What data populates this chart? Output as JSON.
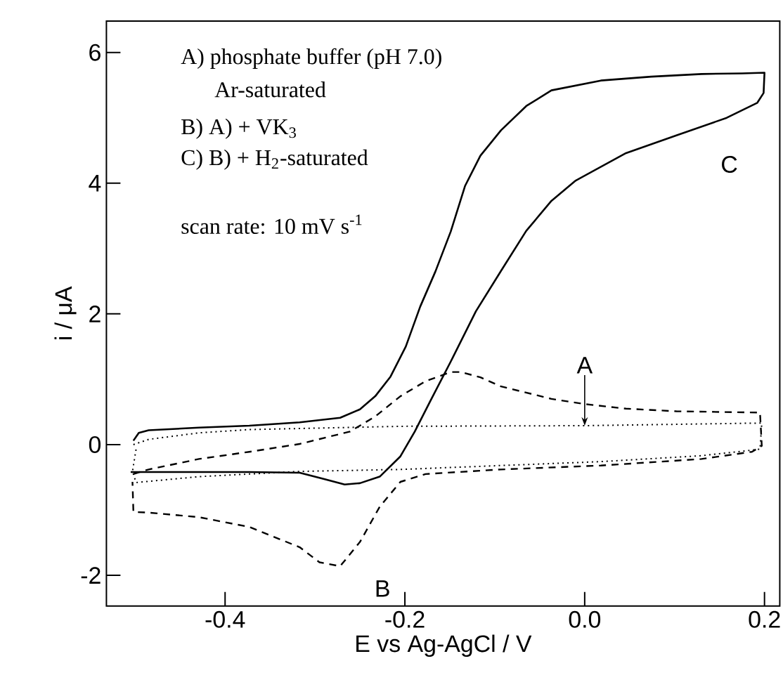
{
  "chart_data": {
    "type": "line",
    "xlabel": "E vs Ag-AgCl  /  V",
    "ylabel": "i  /  μA",
    "xlim": [
      -0.532,
      0.217
    ],
    "ylim": [
      -2.47,
      6.48
    ],
    "xticks": [
      -0.4,
      -0.2,
      {
        "value": 0,
        "label": "0.0"
      },
      0.2
    ],
    "yticks": [
      -2,
      0,
      2,
      4,
      6
    ],
    "series": [
      {
        "color": "#000000",
        "line_style": "solid",
        "x": [
          -0.502,
          -0.496,
          -0.485,
          -0.429,
          -0.373,
          -0.317,
          -0.272,
          -0.25,
          -0.233,
          -0.216,
          -0.199,
          -0.183,
          -0.166,
          -0.149,
          -0.133,
          -0.116,
          -0.093,
          -0.065,
          -0.037,
          0.018,
          0.074,
          0.13,
          0.175,
          0.2,
          0.199,
          0.192,
          0.158,
          0.102,
          0.046,
          -0.01,
          -0.037,
          -0.065,
          -0.093,
          -0.121,
          -0.149,
          -0.172,
          -0.189,
          -0.205,
          -0.228,
          -0.25,
          -0.267,
          -0.289,
          -0.317,
          -0.373,
          -0.505
        ],
        "values": [
          0.06,
          0.18,
          0.22,
          0.26,
          0.29,
          0.34,
          0.41,
          0.54,
          0.74,
          1.04,
          1.5,
          2.11,
          2.65,
          3.26,
          3.96,
          4.42,
          4.81,
          5.18,
          5.42,
          5.57,
          5.63,
          5.67,
          5.68,
          5.69,
          5.38,
          5.23,
          5.0,
          4.73,
          4.46,
          4.04,
          3.73,
          3.27,
          2.66,
          2.04,
          1.27,
          0.66,
          0.2,
          -0.18,
          -0.49,
          -0.59,
          -0.61,
          -0.53,
          -0.43,
          -0.42,
          -0.42
        ]
      },
      {
        "color": "#000000",
        "line_style": "dashed",
        "x": [
          -0.502,
          -0.485,
          -0.429,
          -0.373,
          -0.317,
          -0.261,
          -0.233,
          -0.205,
          -0.177,
          -0.149,
          -0.138,
          -0.116,
          -0.093,
          -0.037,
          0.0,
          0.046,
          0.102,
          0.195,
          0.197,
          0.186,
          0.13,
          0.018,
          -0.093,
          -0.177,
          -0.205,
          -0.228,
          -0.25,
          -0.272,
          -0.295,
          -0.317,
          -0.373,
          -0.429,
          -0.485,
          -0.502,
          -0.503
        ],
        "values": [
          -0.45,
          -0.38,
          -0.22,
          -0.11,
          0.01,
          0.2,
          0.43,
          0.74,
          0.97,
          1.11,
          1.11,
          1.03,
          0.89,
          0.7,
          0.62,
          0.55,
          0.51,
          0.49,
          -0.02,
          -0.11,
          -0.22,
          -0.32,
          -0.38,
          -0.45,
          -0.57,
          -0.95,
          -1.49,
          -1.86,
          -1.8,
          -1.57,
          -1.26,
          -1.11,
          -1.04,
          -1.03,
          -0.57
        ]
      },
      {
        "color": "#000000",
        "line_style": "dotted",
        "x": [
          -0.502,
          -0.485,
          -0.429,
          -0.373,
          -0.205,
          0.0,
          0.197,
          0.195,
          0.13,
          0.018,
          -0.093,
          -0.205,
          -0.317,
          -0.429,
          -0.499,
          -0.503,
          -0.499
        ],
        "values": [
          0.0,
          0.08,
          0.18,
          0.23,
          0.28,
          0.29,
          0.33,
          -0.07,
          -0.17,
          -0.26,
          -0.32,
          -0.38,
          -0.41,
          -0.49,
          -0.58,
          -0.41,
          -0.07
        ]
      }
    ],
    "annotations": [
      "A) phosphate buffer (pH 7.0)",
      "Ar-saturated",
      "B) A) + VK$_{3}$",
      "C) B) + H$_{2}$-saturated",
      "scan rate: 10 mV s$^{-1}$",
      {
        "text": "A",
        "x": 0.0,
        "y": 0.29
      },
      "B",
      "C"
    ]
  }
}
